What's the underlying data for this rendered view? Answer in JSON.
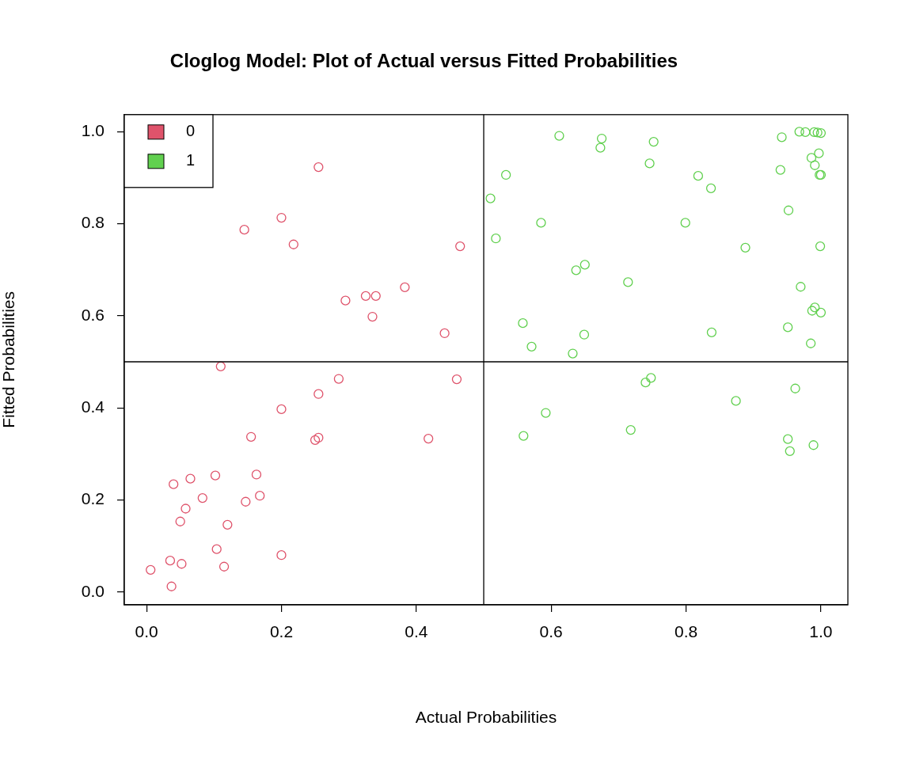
{
  "chart_data": {
    "type": "scatter",
    "title": "Cloglog Model: Plot of Actual versus Fitted Probabilities",
    "x_label": "Actual Probabilities",
    "y_label": "Fitted Probabilities",
    "xlim": [
      -0.033,
      1.04
    ],
    "ylim": [
      -0.028,
      1.037
    ],
    "xticks": [
      {
        "value": 0,
        "label": "0.0"
      },
      {
        "value": 0.2,
        "label": "0.2"
      },
      {
        "value": 0.4,
        "label": "0.4"
      },
      {
        "value": 0.6,
        "label": "0.6"
      },
      {
        "value": 0.8,
        "label": "0.8"
      },
      {
        "value": 1,
        "label": "1.0"
      }
    ],
    "yticks": [
      {
        "value": 0,
        "label": "0.0"
      },
      {
        "value": 0.2,
        "label": "0.2"
      },
      {
        "value": 0.4,
        "label": "0.4"
      },
      {
        "value": 0.6,
        "label": "0.6"
      },
      {
        "value": 0.8,
        "label": "0.8"
      },
      {
        "value": 1,
        "label": "1.0"
      }
    ],
    "reference_lines": {
      "x": [
        0.5
      ],
      "y": [
        0.5
      ]
    },
    "grid": false,
    "legend": "top left",
    "series": [
      {
        "name": "0",
        "color": "#DF536B",
        "marker": "circle",
        "x": [
          0.255,
          0.145,
          0.2,
          0.218,
          0.465,
          0.383,
          0.295,
          0.325,
          0.34,
          0.335,
          0.442,
          0.11,
          0.285,
          0.46,
          0.255,
          0.2,
          0.155,
          0.255,
          0.25,
          0.418,
          0.04,
          0.065,
          0.102,
          0.163,
          0.083,
          0.058,
          0.147,
          0.168,
          0.05,
          0.12,
          0.104,
          0.2,
          0.035,
          0.052,
          0.115,
          0.006,
          0.037
        ],
        "values": [
          0.923,
          0.787,
          0.813,
          0.755,
          0.751,
          0.662,
          0.633,
          0.643,
          0.643,
          0.598,
          0.562,
          0.49,
          0.463,
          0.462,
          0.43,
          0.397,
          0.337,
          0.335,
          0.33,
          0.333,
          0.234,
          0.246,
          0.253,
          0.255,
          0.204,
          0.181,
          0.196,
          0.209,
          0.153,
          0.146,
          0.093,
          0.08,
          0.068,
          0.061,
          0.055,
          0.048,
          0.012
        ]
      },
      {
        "name": "1",
        "color": "#61D04F",
        "marker": "circle",
        "x": [
          0.612,
          0.675,
          0.752,
          0.673,
          0.968,
          0.977,
          0.99,
          0.995,
          1.0,
          0.942,
          0.997,
          0.986,
          0.746,
          0.991,
          0.94,
          0.533,
          0.818,
          0.998,
          1.0,
          0.837,
          0.51,
          0.952,
          0.585,
          0.799,
          0.518,
          0.888,
          0.999,
          0.65,
          0.637,
          0.714,
          0.97,
          0.991,
          0.987,
          1.0,
          0.558,
          0.951,
          0.571,
          0.838,
          0.649,
          0.985,
          0.632,
          0.748,
          0.74,
          0.962,
          0.874,
          0.592,
          0.718,
          0.559,
          0.951,
          0.989,
          0.954
        ],
        "values": [
          0.991,
          0.985,
          0.978,
          0.965,
          1.0,
          0.999,
          0.999,
          0.998,
          0.997,
          0.988,
          0.953,
          0.943,
          0.931,
          0.927,
          0.917,
          0.906,
          0.904,
          0.906,
          0.906,
          0.877,
          0.855,
          0.829,
          0.802,
          0.802,
          0.768,
          0.748,
          0.751,
          0.711,
          0.699,
          0.673,
          0.663,
          0.618,
          0.611,
          0.607,
          0.584,
          0.575,
          0.533,
          0.564,
          0.559,
          0.54,
          0.518,
          0.465,
          0.455,
          0.442,
          0.415,
          0.389,
          0.352,
          0.339,
          0.332,
          0.319,
          0.306
        ]
      }
    ]
  }
}
